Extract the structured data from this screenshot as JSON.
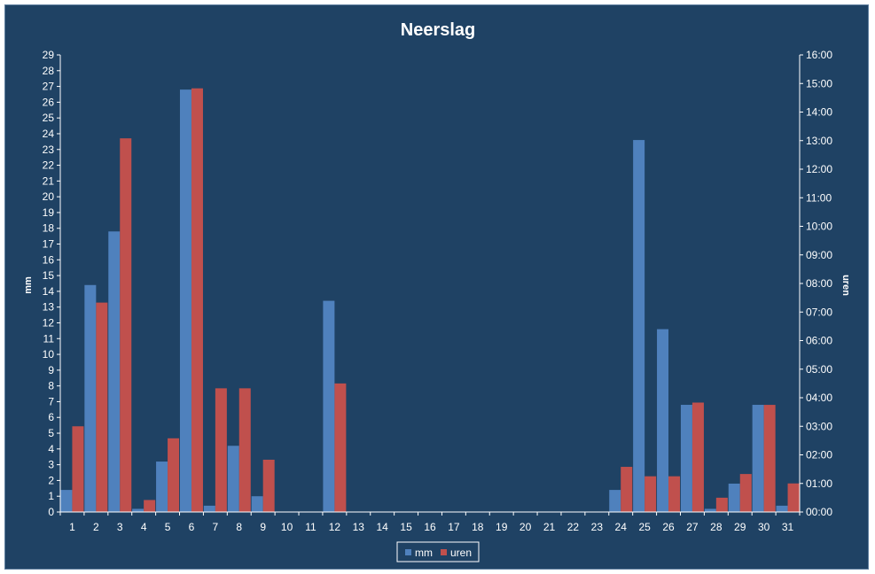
{
  "chart_data": {
    "type": "bar",
    "title": "Neerslag",
    "categories": [
      "1",
      "2",
      "3",
      "4",
      "5",
      "6",
      "7",
      "8",
      "9",
      "10",
      "11",
      "12",
      "13",
      "14",
      "15",
      "16",
      "17",
      "18",
      "19",
      "20",
      "21",
      "22",
      "23",
      "24",
      "25",
      "26",
      "27",
      "28",
      "29",
      "30",
      "31"
    ],
    "ylabel_left": "mm",
    "ylabel_right": "uren",
    "y_left_range": [
      0,
      29
    ],
    "y_right_range_hours": [
      0,
      16
    ],
    "y_left_ticks": [
      "0",
      "1",
      "2",
      "3",
      "4",
      "5",
      "6",
      "7",
      "8",
      "9",
      "10",
      "11",
      "12",
      "13",
      "14",
      "15",
      "16",
      "17",
      "18",
      "19",
      "20",
      "21",
      "22",
      "23",
      "24",
      "25",
      "26",
      "27",
      "28",
      "29"
    ],
    "y_right_ticks": [
      "00:00",
      "01:00",
      "02:00",
      "03:00",
      "04:00",
      "05:00",
      "06:00",
      "07:00",
      "08:00",
      "09:00",
      "10:00",
      "11:00",
      "12:00",
      "13:00",
      "14:00",
      "15:00",
      "16:00"
    ],
    "legend_position": "bottom",
    "grid": false,
    "series": [
      {
        "name": "mm",
        "axis": "left",
        "color": "#4f81bd",
        "values": [
          1.4,
          14.4,
          17.8,
          0.2,
          3.2,
          26.8,
          0.4,
          4.2,
          1.0,
          0,
          0,
          13.4,
          0,
          0,
          0,
          0,
          0,
          0,
          0,
          0,
          0,
          0,
          0,
          1.4,
          23.6,
          11.6,
          6.8,
          0.2,
          1.8,
          6.8,
          0.4
        ]
      },
      {
        "name": "uren",
        "axis": "right",
        "color": "#c0504d",
        "values": [
          3.0,
          7.33,
          13.08,
          0.42,
          2.58,
          14.83,
          4.33,
          4.33,
          1.83,
          0,
          0,
          4.5,
          0,
          0,
          0,
          0,
          0,
          0,
          0,
          0,
          0,
          0,
          0,
          1.58,
          1.25,
          1.25,
          3.83,
          0.5,
          1.33,
          3.75,
          1.0
        ]
      }
    ]
  }
}
